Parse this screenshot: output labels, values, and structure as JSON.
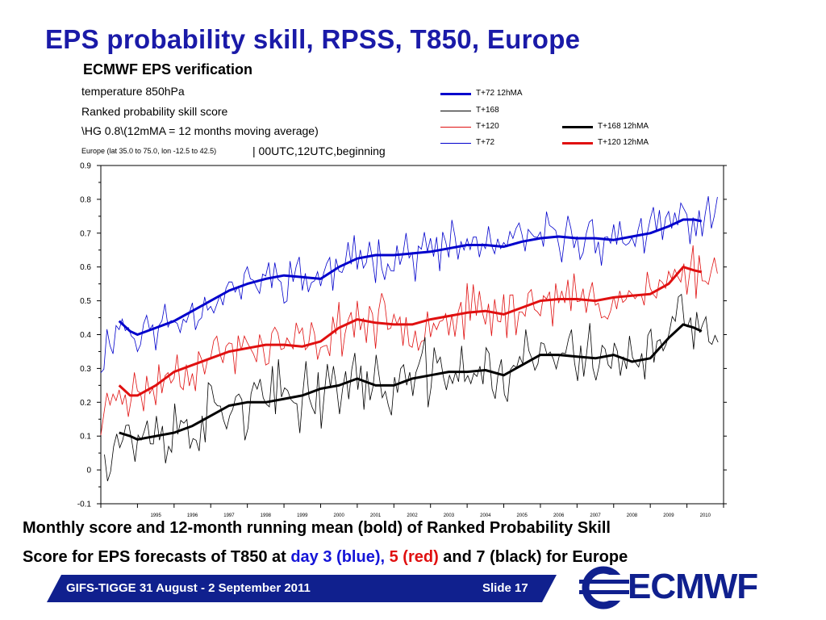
{
  "slide": {
    "title": "EPS probability skill, RPSS, T850, Europe",
    "caption_line1": "Monthly score and 12-month running mean (bold) of Ranked Probability Skill",
    "caption_line2_a": "Score for EPS forecasts of T850 at ",
    "caption_line2_blue": "day 3 (blue),",
    "caption_line2_sp": " ",
    "caption_line2_red": "5 (red)",
    "caption_line2_b": " and 7 (black) for Europe",
    "footer_left": "GIFS-TIGGE 31 August - 2 September 2011",
    "footer_right": "Slide 17",
    "logo_text": "ECMWF",
    "colors": {
      "title": "#1a1aa8",
      "footer": "#10208e",
      "blue": "#1515d8",
      "red": "#e01010",
      "black": "#000000"
    }
  },
  "chart_data": {
    "type": "line",
    "header": {
      "title": "ECMWF EPS verification",
      "line1": "temperature 850hPa",
      "line2": "Ranked probability skill score",
      "line3": "\\HG 0.8\\(12mMA = 12 months moving average)",
      "line4_small": "Europe  (lat  35.0 to 75.0, lon  -12.5 to  42.5)",
      "line4_big": " | 00UTC,12UTC,beginning"
    },
    "legend": [
      {
        "name": "T+72 12hMA",
        "color": "#0000cc",
        "bold": true
      },
      {
        "name": "T+168",
        "color": "#000000",
        "bold": false
      },
      {
        "name": "T+120",
        "color": "#e01010",
        "bold": false
      },
      {
        "name": "T+72",
        "color": "#0000cc",
        "bold": false
      },
      {
        "name": "T+168 12hMA",
        "color": "#000000",
        "bold": true
      },
      {
        "name": "T+120 12hMA",
        "color": "#e01010",
        "bold": true
      }
    ],
    "xlim": [
      1994.0,
      2011.0
    ],
    "ylim": [
      -0.1,
      0.9
    ],
    "y_ticks": [
      "0.9",
      "0.8",
      "0.7",
      "0.6",
      "0.5",
      "0.4",
      "0.3",
      "0.2",
      "0.1",
      "0",
      "-0.1"
    ],
    "x_ticks": [
      "1995",
      "1996",
      "1997",
      "1998",
      "1999",
      "2000",
      "2001",
      "2002",
      "2003",
      "2004",
      "2005",
      "2006",
      "2007",
      "2008",
      "2009",
      "2010"
    ],
    "grid": false,
    "series_ma": [
      {
        "name": "T+72 12hMA",
        "color": "#0000cc",
        "x": [
          1994.5,
          1994.8,
          1995.0,
          1995.5,
          1996.0,
          1996.5,
          1997.0,
          1997.5,
          1998.0,
          1998.5,
          1999.0,
          1999.5,
          2000.0,
          2000.5,
          2001.0,
          2001.5,
          2002.0,
          2002.5,
          2003.0,
          2003.5,
          2004.0,
          2004.5,
          2005.0,
          2005.5,
          2006.0,
          2006.5,
          2007.0,
          2007.5,
          2008.0,
          2008.5,
          2009.0,
          2009.5,
          2009.9,
          2010.2,
          2010.4
        ],
        "y": [
          0.44,
          0.41,
          0.4,
          0.42,
          0.44,
          0.47,
          0.5,
          0.53,
          0.55,
          0.565,
          0.575,
          0.57,
          0.565,
          0.6,
          0.625,
          0.635,
          0.635,
          0.64,
          0.645,
          0.655,
          0.665,
          0.665,
          0.66,
          0.675,
          0.685,
          0.69,
          0.685,
          0.685,
          0.68,
          0.69,
          0.7,
          0.72,
          0.74,
          0.74,
          0.735
        ]
      },
      {
        "name": "T+120 12hMA",
        "color": "#e01010",
        "x": [
          1994.5,
          1994.8,
          1995.0,
          1995.5,
          1996.0,
          1996.5,
          1997.0,
          1997.5,
          1998.0,
          1998.5,
          1999.0,
          1999.5,
          2000.0,
          2000.5,
          2001.0,
          2001.5,
          2002.0,
          2002.5,
          2003.0,
          2003.5,
          2004.0,
          2004.5,
          2005.0,
          2005.5,
          2006.0,
          2006.5,
          2007.0,
          2007.5,
          2008.0,
          2008.5,
          2009.0,
          2009.5,
          2009.9,
          2010.2,
          2010.4
        ],
        "y": [
          0.25,
          0.22,
          0.22,
          0.25,
          0.29,
          0.31,
          0.33,
          0.35,
          0.36,
          0.37,
          0.37,
          0.365,
          0.38,
          0.42,
          0.445,
          0.435,
          0.43,
          0.43,
          0.445,
          0.455,
          0.465,
          0.47,
          0.46,
          0.48,
          0.5,
          0.505,
          0.505,
          0.5,
          0.51,
          0.515,
          0.52,
          0.55,
          0.6,
          0.59,
          0.585
        ]
      },
      {
        "name": "T+168 12hMA",
        "color": "#000000",
        "x": [
          1994.5,
          1994.8,
          1995.0,
          1995.5,
          1996.0,
          1996.5,
          1997.0,
          1997.5,
          1998.0,
          1998.5,
          1999.0,
          1999.5,
          2000.0,
          2000.5,
          2001.0,
          2001.5,
          2002.0,
          2002.5,
          2003.0,
          2003.5,
          2004.0,
          2004.5,
          2005.0,
          2005.5,
          2006.0,
          2006.5,
          2007.0,
          2007.5,
          2008.0,
          2008.5,
          2009.0,
          2009.5,
          2009.9,
          2010.2,
          2010.4
        ],
        "y": [
          0.11,
          0.1,
          0.09,
          0.1,
          0.11,
          0.13,
          0.16,
          0.19,
          0.2,
          0.2,
          0.21,
          0.22,
          0.24,
          0.25,
          0.27,
          0.25,
          0.25,
          0.27,
          0.28,
          0.29,
          0.29,
          0.295,
          0.28,
          0.31,
          0.34,
          0.34,
          0.335,
          0.33,
          0.34,
          0.32,
          0.33,
          0.39,
          0.43,
          0.42,
          0.41
        ]
      }
    ],
    "series_monthly": [
      {
        "name": "T+72",
        "color": "#0000cc",
        "base_from": "T+72 12hMA",
        "amplitude": 0.055,
        "seed": 11,
        "x_start": 1994.0,
        "x_end": 2010.9,
        "y_start": 0.33
      },
      {
        "name": "T+120",
        "color": "#e01010",
        "base_from": "T+120 12hMA",
        "amplitude": 0.06,
        "seed": 23,
        "x_start": 1994.0,
        "x_end": 2010.9,
        "y_start": 0.14
      },
      {
        "name": "T+168",
        "color": "#000000",
        "base_from": "T+168 12hMA",
        "amplitude": 0.08,
        "seed": 37,
        "x_start": 1994.1,
        "x_end": 2010.9,
        "y_start": 0.06
      }
    ]
  }
}
